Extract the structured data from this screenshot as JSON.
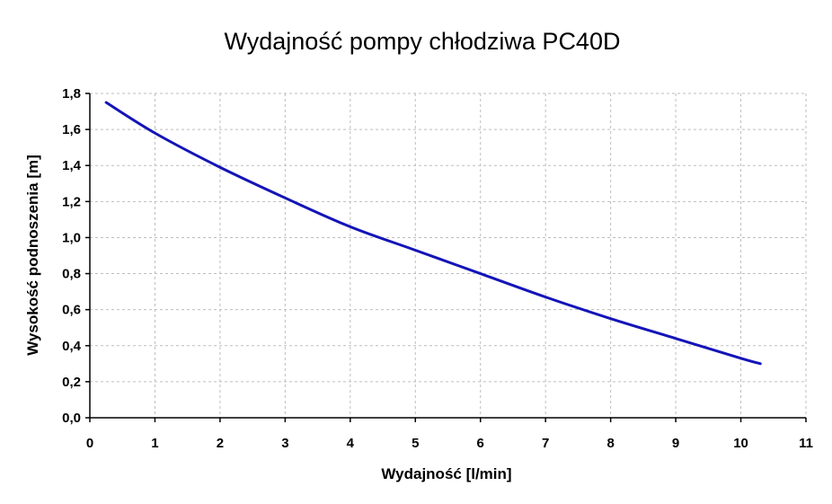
{
  "chart_data": {
    "type": "line",
    "title": "Wydajność pompy chłodziwa PC40D",
    "xlabel": "Wydajność [l/min]",
    "ylabel": "Wysokość podnoszenia [m]",
    "xlim": [
      0,
      11
    ],
    "ylim": [
      0,
      1.8
    ],
    "xticks": [
      0,
      1,
      2,
      3,
      4,
      5,
      6,
      7,
      8,
      9,
      10,
      11
    ],
    "yticks": [
      "0,0",
      "0,2",
      "0,4",
      "0,6",
      "0,8",
      "1,0",
      "1,2",
      "1,4",
      "1,6",
      "1,8"
    ],
    "grid": true,
    "legend": "none",
    "series": [
      {
        "color": "#1414b8",
        "x": [
          0.25,
          1,
          2,
          3,
          4,
          5,
          6,
          7,
          8,
          9,
          10,
          10.3
        ],
        "y": [
          1.75,
          1.58,
          1.39,
          1.22,
          1.06,
          0.93,
          0.8,
          0.67,
          0.55,
          0.44,
          0.33,
          0.3
        ]
      }
    ]
  }
}
